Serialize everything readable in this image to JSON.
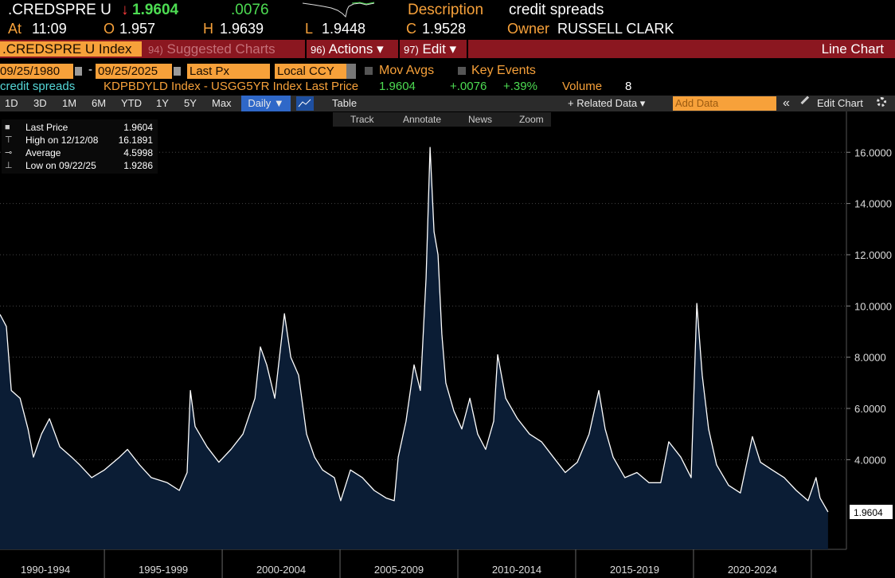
{
  "header": {
    "ticker": ".CREDSPRE U",
    "last_arrow": "↓",
    "last": "1.9604",
    "change": ".0076",
    "description_label": "Description",
    "description": "credit spreads",
    "at_label": "At",
    "time": "11:09",
    "open_label": "O",
    "open": "1.957",
    "high_label": "H",
    "high": "1.9639",
    "low_label": "L",
    "low": "1.9448",
    "close_label": "C",
    "close": "1.9528",
    "owner_label": "Owner",
    "owner": "RUSSELL CLARK"
  },
  "menu": {
    "security": ".CREDSPRE U Index",
    "items": [
      {
        "num": "94)",
        "label": "Suggested Charts"
      },
      {
        "num": "96)",
        "label": "Actions ▾"
      },
      {
        "num": "97)",
        "label": "Edit ▾"
      }
    ],
    "chart_type": "Line Chart"
  },
  "settings": {
    "start_date": "09/25/1980",
    "dash": "-",
    "end_date": "09/25/2025",
    "field": "Last Px",
    "currency": "Local CCY",
    "mov_avgs": "Mov Avgs",
    "key_events": "Key Events"
  },
  "info": {
    "name": "credit spreads",
    "expression": "KDPBDYLD Index - USGG5YR Index Last Price",
    "last": "1.9604",
    "change": "+.0076",
    "pct_change": "+.39%",
    "volume_label": "Volume",
    "volume": "8"
  },
  "toolbar": {
    "periods": [
      "1D",
      "3D",
      "1M",
      "6M",
      "YTD",
      "1Y",
      "5Y",
      "Max"
    ],
    "frequency": "Daily ▼",
    "table": "Table",
    "related": "+ Related Data ▾",
    "add_data": "Add Data",
    "collapse": "«",
    "edit_chart": "Edit Chart"
  },
  "chart_tools": [
    "Track",
    "Annotate",
    "News",
    "Zoom"
  ],
  "chart_legend": [
    {
      "label": "Last Price",
      "value": "1.9604"
    },
    {
      "label": "High on 12/12/08",
      "value": "16.1891"
    },
    {
      "label": "Average",
      "value": "4.5998"
    },
    {
      "label": "Low on 09/22/25",
      "value": "1.9286"
    }
  ],
  "chart_data": {
    "type": "area",
    "x": [
      1990.57,
      1990.84,
      1991.05,
      1991.42,
      1991.76,
      1991.99,
      1992.33,
      1992.67,
      1993.11,
      1993.61,
      1993.95,
      1994.46,
      1995.0,
      1995.64,
      1995.98,
      1996.49,
      1996.99,
      1997.67,
      1998.18,
      1998.51,
      1998.65,
      1998.85,
      1999.36,
      1999.86,
      2000.37,
      2000.88,
      2001.39,
      2001.62,
      2001.89,
      2002.23,
      2002.64,
      2002.91,
      2003.24,
      2003.58,
      2003.92,
      2004.26,
      2004.76,
      2005.03,
      2005.44,
      2005.95,
      2006.45,
      2006.96,
      2007.3,
      2007.47,
      2007.8,
      2008.14,
      2008.41,
      2008.65,
      2008.82,
      2008.99,
      2009.16,
      2009.32,
      2009.49,
      2009.83,
      2010.17,
      2010.51,
      2010.84,
      2011.18,
      2011.52,
      2011.69,
      2012.03,
      2012.53,
      2013.04,
      2013.55,
      2014.05,
      2014.56,
      2015.07,
      2015.57,
      2015.98,
      2016.25,
      2016.59,
      2017.09,
      2017.6,
      2018.11,
      2018.61,
      2018.95,
      2019.46,
      2019.9,
      2020.14,
      2020.37,
      2020.64,
      2020.98,
      2021.49,
      2021.99,
      2022.5,
      2022.84,
      2023.34,
      2023.85,
      2024.36,
      2024.86,
      2025.2,
      2025.37,
      2025.71
    ],
    "series": [
      {
        "name": "Last Price",
        "color": "#ffffff",
        "fill": "#0b1d35",
        "values": [
          9.67,
          9.2,
          6.7,
          6.4,
          5.2,
          4.1,
          5.0,
          5.6,
          4.5,
          4.1,
          3.8,
          3.3,
          3.6,
          4.1,
          4.4,
          3.8,
          3.3,
          3.1,
          2.8,
          3.5,
          6.7,
          5.3,
          4.5,
          3.9,
          4.4,
          5.0,
          6.4,
          8.4,
          7.7,
          6.4,
          9.7,
          8.0,
          7.3,
          5.0,
          4.1,
          3.6,
          3.3,
          2.4,
          3.6,
          3.3,
          2.8,
          2.5,
          2.4,
          4.1,
          5.5,
          7.7,
          6.7,
          11.1,
          16.1891,
          12.9,
          12.0,
          8.9,
          7.0,
          5.9,
          5.2,
          6.4,
          5.0,
          4.4,
          5.5,
          8.1,
          6.4,
          5.6,
          5.0,
          4.7,
          4.1,
          3.5,
          3.9,
          5.0,
          6.7,
          5.2,
          4.1,
          3.3,
          3.5,
          3.1,
          3.1,
          4.7,
          4.1,
          3.3,
          10.1,
          7.3,
          5.2,
          3.8,
          3.0,
          2.7,
          4.9,
          3.9,
          3.6,
          3.3,
          2.8,
          2.4,
          3.3,
          2.5,
          1.9604
        ]
      }
    ],
    "xlim": [
      1990.57,
      2026.49
    ],
    "xticks": [
      {
        "value": 1990,
        "label": "1990-1994"
      },
      {
        "value": 1995,
        "label": "1995-1999"
      },
      {
        "value": 2000,
        "label": "2000-2004"
      },
      {
        "value": 2005,
        "label": "2005-2009"
      },
      {
        "value": 2010,
        "label": "2010-2014"
      },
      {
        "value": 2015,
        "label": "2015-2019"
      },
      {
        "value": 2020,
        "label": "2020-2024"
      }
    ],
    "ylim": [
      0.5,
      17.5
    ],
    "yticks": [
      {
        "value": 4,
        "label": "4.0000"
      },
      {
        "value": 6,
        "label": "6.0000"
      },
      {
        "value": 8,
        "label": "8.0000"
      },
      {
        "value": 10,
        "label": "10.0000"
      },
      {
        "value": 12,
        "label": "12.0000"
      },
      {
        "value": 14,
        "label": "14.0000"
      },
      {
        "value": 16,
        "label": "16.0000"
      }
    ]
  }
}
